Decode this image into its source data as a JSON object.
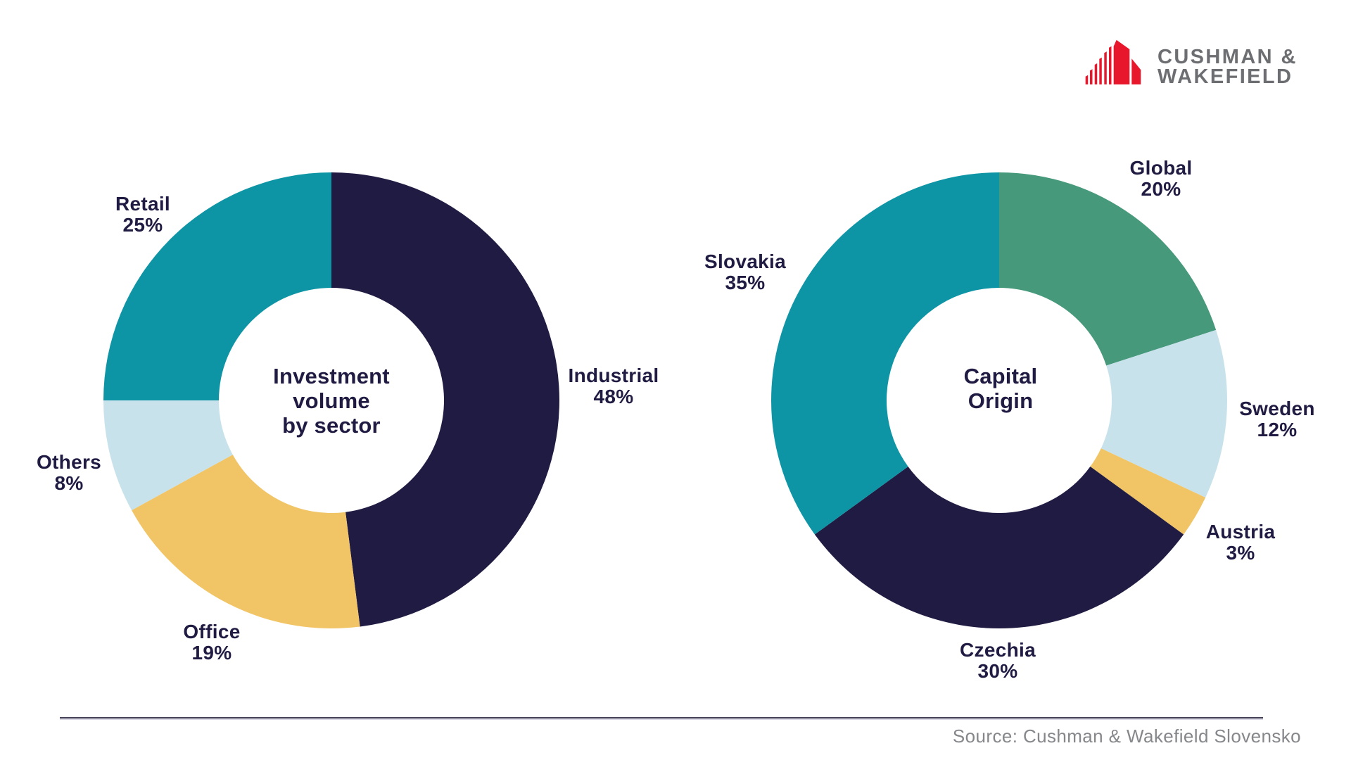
{
  "logo": {
    "line1": "CUSHMAN &",
    "line2": "WAKEFIELD",
    "icon_color": "#E9172B",
    "text_color": "#6D6E71"
  },
  "source_note": "Source: Cushman & Wakefield Slovensko",
  "text_color": "#201B42",
  "chart_data": [
    {
      "type": "donut",
      "title": "Investment volume by sector",
      "title_display": "Investment\nvolume\nby sector",
      "start_angle_deg": 0,
      "direction": "clockwise",
      "legend_position": "around",
      "slices": [
        {
          "label": "Industrial",
          "value": 48,
          "pct_label": "48%",
          "color": "#201B42"
        },
        {
          "label": "Office",
          "value": 19,
          "pct_label": "19%",
          "color": "#F1C566"
        },
        {
          "label": "Others",
          "value": 8,
          "pct_label": "8%",
          "color": "#C8E2EB"
        },
        {
          "label": "Retail",
          "value": 25,
          "pct_label": "25%",
          "color": "#0E95A5"
        }
      ]
    },
    {
      "type": "donut",
      "title": "Capital Origin",
      "title_display": "Capital\nOrigin",
      "start_angle_deg": 0,
      "direction": "clockwise",
      "legend_position": "around",
      "slices": [
        {
          "label": "Global",
          "value": 20,
          "pct_label": "20%",
          "color": "#47997B"
        },
        {
          "label": "Sweden",
          "value": 12,
          "pct_label": "12%",
          "color": "#C8E2EB"
        },
        {
          "label": "Austria",
          "value": 3,
          "pct_label": "3%",
          "color": "#F1C566"
        },
        {
          "label": "Czechia",
          "value": 30,
          "pct_label": "30%",
          "color": "#201B42"
        },
        {
          "label": "Slovakia",
          "value": 35,
          "pct_label": "35%",
          "color": "#0E95A5"
        }
      ]
    }
  ]
}
